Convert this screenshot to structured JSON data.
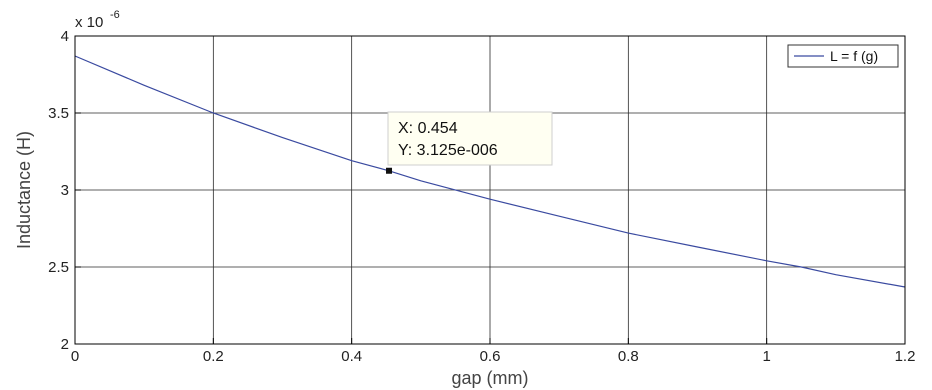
{
  "chart_data": {
    "type": "line",
    "xlabel": "gap (mm)",
    "ylabel": "Inductance (H)",
    "xlim": [
      0,
      1.2
    ],
    "ylim": [
      2,
      4
    ],
    "x_ticks": [
      0,
      0.2,
      0.4,
      0.6,
      0.8,
      1,
      1.2
    ],
    "y_ticks": [
      2,
      2.5,
      3,
      3.5,
      4
    ],
    "x_tick_labels": [
      "0",
      "0.2",
      "0.4",
      "0.6",
      "0.8",
      "1",
      "1.2"
    ],
    "y_tick_labels": [
      "2",
      "2.5",
      "3",
      "3.5",
      "4"
    ],
    "y_exponent": {
      "base": "x 10",
      "power": "-6"
    },
    "grid": true,
    "legend_position": "top-right",
    "series": [
      {
        "name": "L = f (g)",
        "color": "#3a4aa0",
        "x": [
          0,
          0.1,
          0.2,
          0.3,
          0.4,
          0.454,
          0.5,
          0.6,
          0.7,
          0.8,
          0.9,
          1.0,
          1.05,
          1.1,
          1.2
        ],
        "y": [
          3.87,
          3.68,
          3.5,
          3.34,
          3.19,
          3.125,
          3.06,
          2.94,
          2.83,
          2.72,
          2.63,
          2.54,
          2.5,
          2.45,
          2.37
        ]
      }
    ],
    "datatip": {
      "x": 0.454,
      "y": 3.125,
      "x_text": "X: 0.454",
      "y_text": "Y: 3.125e-006"
    }
  }
}
